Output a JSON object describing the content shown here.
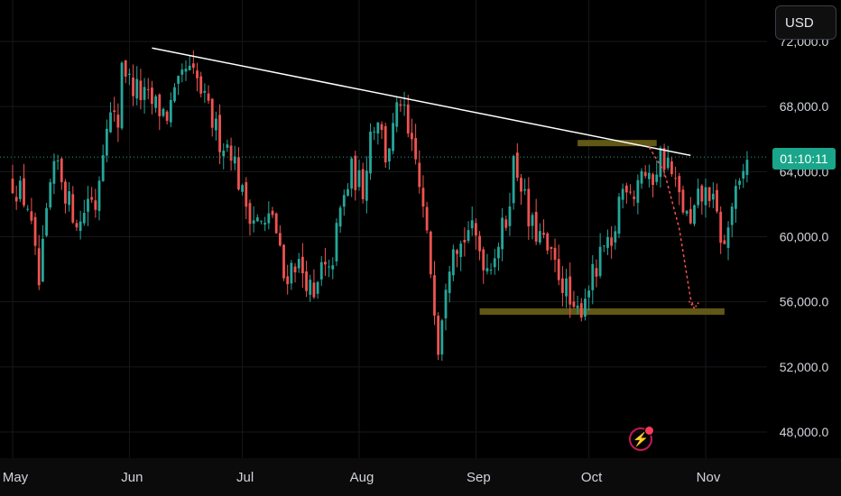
{
  "currency_button": {
    "label": "USD"
  },
  "countdown": {
    "label": "01:10:11"
  },
  "colors": {
    "up": "#26a69a",
    "down": "#ef5350",
    "trendline": "#ffffff",
    "zone": "#6b6118",
    "projection": "#ef5350",
    "price_line": "#1aa68a",
    "axis_text": "#d1d4dc"
  },
  "icons": {
    "alert": "lightning-bolt-icon"
  },
  "chart_data": {
    "type": "candlestick",
    "x_start": "2024-05-01",
    "x_ticks": [
      "May",
      "Jun",
      "Jul",
      "Aug",
      "Sep",
      "Oct",
      "Nov"
    ],
    "x_tick_dates": [
      "2024-05-01",
      "2024-06-01",
      "2024-07-01",
      "2024-08-01",
      "2024-09-01",
      "2024-10-01",
      "2024-11-01"
    ],
    "y_ticks": [
      "72,000.0",
      "68,000.0",
      "64,000.0",
      "60,000.0",
      "56,000.0",
      "52,000.0",
      "48,000.0"
    ],
    "y_tick_values": [
      72000,
      68000,
      64000,
      60000,
      56000,
      52000,
      48000
    ],
    "ylim": [
      46500,
      74200
    ],
    "current_price": 64900,
    "series_close": [
      [
        0,
        63400
      ],
      [
        4,
        62000
      ],
      [
        7,
        57000
      ],
      [
        10,
        63000
      ],
      [
        12,
        64500
      ],
      [
        15,
        62000
      ],
      [
        18,
        60800
      ],
      [
        20,
        62500
      ],
      [
        22,
        62000
      ],
      [
        25,
        67500
      ],
      [
        28,
        67000
      ],
      [
        29,
        71000
      ],
      [
        31,
        69500
      ],
      [
        35,
        68500
      ],
      [
        38,
        68000
      ],
      [
        41,
        67500
      ],
      [
        44,
        69000
      ],
      [
        46,
        70200
      ],
      [
        49,
        69500
      ],
      [
        51,
        68200
      ],
      [
        55,
        66000
      ],
      [
        58,
        65500
      ],
      [
        61,
        62500
      ],
      [
        64,
        61200
      ],
      [
        67,
        60500
      ],
      [
        69,
        61500
      ],
      [
        72,
        57500
      ],
      [
        75,
        58500
      ],
      [
        78,
        57500
      ],
      [
        80,
        55800
      ],
      [
        82,
        58000
      ],
      [
        84,
        57500
      ],
      [
        87,
        61500
      ],
      [
        90,
        64000
      ],
      [
        93,
        63000
      ],
      [
        95,
        66500
      ],
      [
        97,
        67500
      ],
      [
        99,
        65000
      ],
      [
        101,
        66500
      ],
      [
        103,
        68500
      ],
      [
        105,
        66000
      ],
      [
        107,
        64500
      ],
      [
        109,
        61500
      ],
      [
        111,
        58000
      ],
      [
        112,
        56000
      ],
      [
        113,
        53500
      ],
      [
        115,
        57500
      ],
      [
        117,
        60000
      ],
      [
        119,
        59500
      ],
      [
        121,
        60500
      ],
      [
        123,
        59800
      ],
      [
        126,
        58200
      ],
      [
        129,
        59700
      ],
      [
        131,
        61000
      ],
      [
        133,
        64500
      ],
      [
        135,
        63500
      ],
      [
        137,
        60800
      ],
      [
        140,
        60000
      ],
      [
        143,
        58500
      ],
      [
        145,
        57800
      ],
      [
        147,
        56700
      ],
      [
        149,
        54900
      ],
      [
        151,
        55800
      ],
      [
        153,
        57200
      ],
      [
        155,
        57800
      ],
      [
        157,
        59300
      ],
      [
        159,
        58900
      ],
      [
        161,
        62300
      ],
      [
        163,
        63500
      ],
      [
        165,
        62800
      ],
      [
        167,
        64300
      ],
      [
        169,
        63100
      ],
      [
        172,
        65000
      ],
      [
        174,
        64500
      ],
      [
        176,
        63000
      ],
      [
        178,
        61800
      ],
      [
        180,
        60500
      ],
      [
        182,
        62200
      ],
      [
        185,
        62800
      ],
      [
        187,
        61000
      ],
      [
        189,
        59200
      ],
      [
        191,
        62000
      ],
      [
        193,
        62800
      ],
      [
        195,
        64900
      ]
    ],
    "trendline": [
      [
        "2024-06-07",
        71600
      ],
      [
        "2024-10-28",
        65000
      ]
    ],
    "zones": [
      {
        "from": "2024-09-02",
        "to": "2024-11-06",
        "low": 55200,
        "high": 55600
      },
      {
        "from": "2024-09-28",
        "to": "2024-10-19",
        "low": 65600,
        "high": 65950
      }
    ],
    "projection": [
      [
        "2024-10-17",
        65500
      ],
      [
        "2024-10-21",
        64000
      ],
      [
        "2024-10-25",
        60500
      ],
      [
        "2024-10-28",
        56200
      ],
      [
        "2024-10-29",
        55600
      ]
    ]
  }
}
